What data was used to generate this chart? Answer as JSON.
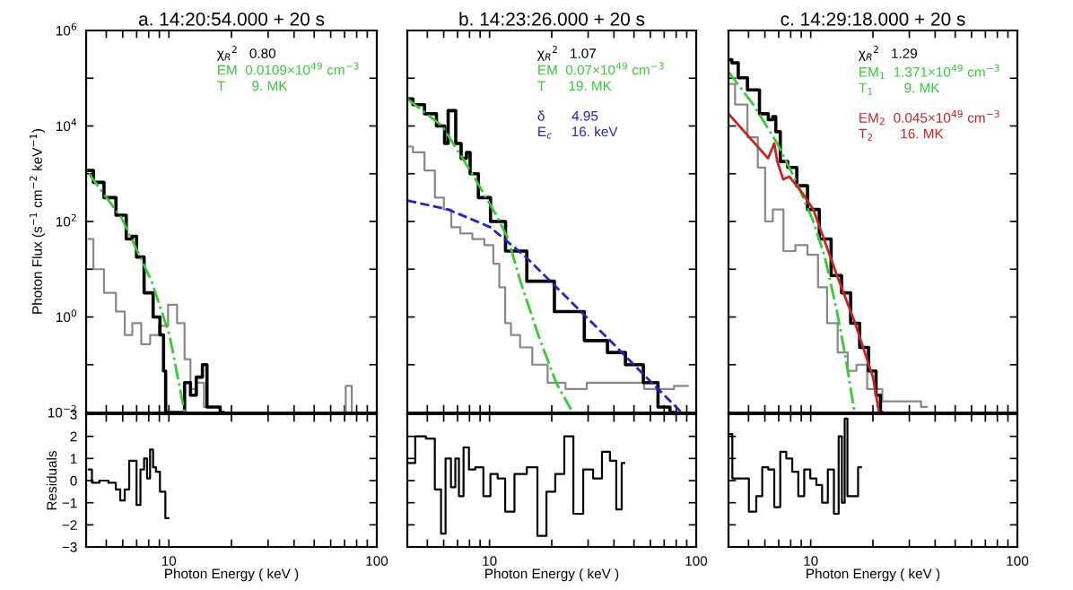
{
  "chart_data": [
    {
      "type": "line",
      "title": "a. 14:20:54.000 + 20 s",
      "ylabel": "Photon Flux (s$^{−1}$ cm$^{−2}$ keV$^{−1}$)",
      "log": "xy",
      "xlim": [
        4,
        100
      ],
      "ylim": [
        0.01,
        1000000
      ],
      "xticks": [
        {
          "value": 5,
          "label": null
        },
        {
          "value": 6,
          "label": null
        },
        {
          "value": 7,
          "label": null
        },
        {
          "value": 8,
          "label": null
        },
        {
          "value": 9,
          "label": null
        },
        {
          "value": 10,
          "label": null
        },
        {
          "value": 20,
          "label": null
        },
        {
          "value": 30,
          "label": null
        },
        {
          "value": 40,
          "label": null
        },
        {
          "value": 50,
          "label": null
        },
        {
          "value": 60,
          "label": null
        },
        {
          "value": 70,
          "label": null
        },
        {
          "value": 80,
          "label": null
        },
        {
          "value": 90,
          "label": null
        },
        {
          "value": 100,
          "label": null
        }
      ],
      "yticks": [
        {
          "value": 0.01,
          "label": "10$^{−2}$"
        },
        {
          "value": 0.1,
          "label": null
        },
        {
          "value": 1,
          "label": "10$^{0}$"
        },
        {
          "value": 10,
          "label": null
        },
        {
          "value": 100,
          "label": "10$^{2}$"
        },
        {
          "value": 1000,
          "label": null
        },
        {
          "value": 10000,
          "label": "10$^{4}$"
        },
        {
          "value": 100000,
          "label": null
        },
        {
          "value": 1000000,
          "label": "10$^{6}$"
        }
      ],
      "tick_labels": "y",
      "grid": false,
      "annotations": [
        "χ$_{R}$$^{2}$   0.80"
      ],
      "series": [
        {
          "type": "step",
          "color": "#888888",
          "line_style": "solid",
          "x": [
            4.12,
            4.55,
            5.2,
            5.93,
            6.34,
            7.0,
            7.73,
            8.53,
            9.42,
            10.4,
            11.5,
            12.3,
            13.1,
            14.0,
            15.5,
            20,
            68.5,
            73.3,
            78.3
          ],
          "values": [
            43,
            10,
            3.2,
            1.3,
            0.42,
            0.74,
            0.27,
            0.42,
            0.65,
            1.8,
            0.74,
            0.13,
            0.031,
            0.042,
            0.013,
            null,
            0.01,
            0.036,
            0.01
          ]
        },
        {
          "type": "step",
          "color": "#000000",
          "line_style": "solid",
          "x": [
            4.12,
            4.55,
            5.2,
            5.93,
            6.54,
            6.76,
            7.22,
            7.98,
            8.82,
            9.3,
            9.55,
            9.75,
            11.5,
            12.3,
            13.1,
            14.0,
            15.0,
            15.5,
            17.1,
            18.2
          ],
          "values": [
            1170,
            660,
            316,
            135,
            43,
            49,
            18,
            3.2,
            1.0,
            0.42,
            0.074,
            0.01,
            0.01,
            0.042,
            0.023,
            0.055,
            0.1,
            0.013,
            0.013,
            0.01
          ]
        },
        {
          "type": "line",
          "name": "EM  0.0109×10$^{49}$ cm$^{−3}$\nT       9. MK",
          "color": "#33cc33",
          "line_style": "dashdot",
          "x": [
            4.12,
            5.93,
            8.26,
            10.07,
            11.9
          ],
          "values": [
            1010,
            117,
            5.6,
            0.42,
            0.01
          ]
        }
      ]
    },
    {
      "type": "line",
      "title": "b. 14:23:26.000 + 20 s",
      "log": "xy",
      "xlim": [
        4,
        100
      ],
      "ylim": [
        0.01,
        1000000
      ],
      "xticks": [
        {
          "value": 5,
          "label": null
        },
        {
          "value": 6,
          "label": null
        },
        {
          "value": 7,
          "label": null
        },
        {
          "value": 8,
          "label": null
        },
        {
          "value": 9,
          "label": null
        },
        {
          "value": 10,
          "label": null
        },
        {
          "value": 20,
          "label": null
        },
        {
          "value": 30,
          "label": null
        },
        {
          "value": 40,
          "label": null
        },
        {
          "value": 50,
          "label": null
        },
        {
          "value": 60,
          "label": null
        },
        {
          "value": 70,
          "label": null
        },
        {
          "value": 80,
          "label": null
        },
        {
          "value": 90,
          "label": null
        },
        {
          "value": 100,
          "label": null
        }
      ],
      "yticks": [
        {
          "value": 0.01,
          "label": null
        },
        {
          "value": 0.1,
          "label": null
        },
        {
          "value": 1,
          "label": null
        },
        {
          "value": 10,
          "label": null
        },
        {
          "value": 100,
          "label": null
        },
        {
          "value": 1000,
          "label": null
        },
        {
          "value": 10000,
          "label": null
        },
        {
          "value": 100000,
          "label": null
        },
        {
          "value": 1000000,
          "label": null
        }
      ],
      "tick_labels": false,
      "grid": false,
      "annotations": [
        "χ$_{R}$$^{2}$   1.07"
      ],
      "series": [
        {
          "type": "step",
          "color": "#888888",
          "line_style": "solid",
          "x": [
            4.0,
            4.52,
            5.17,
            5.71,
            6.31,
            6.75,
            7.7,
            8.81,
            10.07,
            10.8,
            11.5,
            12.3,
            13.1,
            15.0,
            17.2,
            21,
            25.6,
            33.5,
            46.8,
            65.2,
            91
          ],
          "values": [
            3700,
            2800,
            1170,
            316,
            178,
            76,
            56,
            43,
            32,
            13,
            4.2,
            0.74,
            0.42,
            0.23,
            0.1,
            0.042,
            0.031,
            0.042,
            0.042,
            0.031,
            0.036
          ]
        },
        {
          "type": "step",
          "color": "#000000",
          "line_style": "solid",
          "x": [
            4.0,
            4.52,
            5.17,
            5.9,
            6.22,
            6.39,
            6.75,
            6.97,
            7.6,
            7.87,
            8.24,
            9.42,
            10.8,
            13.1,
            17.2,
            24,
            33.5,
            40.9,
            50,
            61,
            69.7,
            79.6
          ],
          "values": [
            37000,
            28000,
            18000,
            10000,
            4300,
            21000,
            21000,
            4300,
            2100,
            2800,
            1000,
            316,
            100,
            24,
            5.6,
            1.3,
            0.32,
            0.18,
            0.1,
            0.042,
            0.013,
            0.01
          ]
        },
        {
          "type": "line",
          "name": "EM  0.07×10$^{49}$ cm$^{−3}$\nT      19. MK",
          "color": "#33cc33",
          "line_style": "dashdot",
          "x": [
            4.0,
            5.9,
            8.24,
            10.8,
            12.3,
            14.1,
            17.2,
            21,
            24.8
          ],
          "values": [
            37000,
            10000,
            1000,
            134,
            43,
            5.6,
            0.42,
            0.042,
            0.0115
          ]
        },
        {
          "type": "line",
          "name": "δ       4.95\nE$_{c}$     16. keV",
          "color": "#2222cc",
          "line_style": "dashed",
          "x": [
            4.0,
            6.31,
            10.07,
            15.0,
            24,
            38.3,
            53.5,
            85
          ],
          "values": [
            275,
            178,
            76,
            18,
            2.4,
            0.32,
            0.074,
            0.01
          ]
        }
      ]
    },
    {
      "type": "line",
      "title": "c. 14:29:18.000 + 20 s",
      "log": "xy",
      "xlim": [
        4,
        100
      ],
      "ylim": [
        0.01,
        1000000
      ],
      "xticks": [
        {
          "value": 5,
          "label": null
        },
        {
          "value": 6,
          "label": null
        },
        {
          "value": 7,
          "label": null
        },
        {
          "value": 8,
          "label": null
        },
        {
          "value": 9,
          "label": null
        },
        {
          "value": 10,
          "label": null
        },
        {
          "value": 20,
          "label": null
        },
        {
          "value": 30,
          "label": null
        },
        {
          "value": 40,
          "label": null
        },
        {
          "value": 50,
          "label": null
        },
        {
          "value": 60,
          "label": null
        },
        {
          "value": 70,
          "label": null
        },
        {
          "value": 80,
          "label": null
        },
        {
          "value": 90,
          "label": null
        },
        {
          "value": 100,
          "label": null
        }
      ],
      "yticks": [
        {
          "value": 0.01,
          "label": null
        },
        {
          "value": 0.1,
          "label": null
        },
        {
          "value": 1,
          "label": null
        },
        {
          "value": 10,
          "label": null
        },
        {
          "value": 100,
          "label": null
        },
        {
          "value": 1000,
          "label": null
        },
        {
          "value": 10000,
          "label": null
        },
        {
          "value": 100000,
          "label": null
        },
        {
          "value": 1000000,
          "label": null
        }
      ],
      "tick_labels": false,
      "grid": false,
      "annotations": [
        "χ$_{R}$$^{2}$   1.29"
      ],
      "series": [
        {
          "type": "step",
          "color": "#888888",
          "line_style": "solid",
          "x": [
            4.0,
            4.61,
            5.27,
            5.82,
            6.22,
            6.89,
            7.87,
            8.99,
            10.3,
            11.4,
            12.6,
            14.4,
            15.8,
            17.5,
            20.0,
            24.4,
            31.9,
            36.5
          ],
          "values": [
            76000,
            28000,
            5800,
            1350,
            100,
            178,
            24,
            32,
            20,
            4.2,
            0.74,
            0.18,
            0.074,
            0.1,
            0.031,
            0.017,
            0.017,
            0.013
          ]
        },
        {
          "type": "step",
          "color": "#000000",
          "line_style": "solid",
          "x": [
            4.0,
            4.31,
            4.61,
            5.27,
            6.03,
            6.44,
            6.66,
            6.89,
            7.36,
            8.13,
            8.99,
            10.3,
            11.7,
            13.4,
            14.8,
            16.4,
            18.1,
            20.0,
            21.4,
            22.1
          ],
          "values": [
            245000,
            210000,
            102000,
            57000,
            18000,
            13500,
            15700,
            7600,
            1800,
            1350,
            560,
            178,
            43,
            7.4,
            3.2,
            0.74,
            0.23,
            0.074,
            0.023,
            0.01
          ]
        },
        {
          "type": "line",
          "name": "EM$_{1}$  1.371×10$^{49}$ cm$^{−3}$\nT$_{1}$        9. MK",
          "color": "#33cc33",
          "line_style": "dashdot",
          "x": [
            4.0,
            5.27,
            6.89,
            8.41,
            10.3,
            11.7,
            13.4,
            14.8,
            16.2
          ],
          "values": [
            137000,
            28000,
            4300,
            760,
            100,
            18,
            1.3,
            0.13,
            0.0115
          ]
        },
        {
          "type": "line",
          "name": "EM$_{2}$  0.045×10$^{49}$ cm$^{−3}$\nT$_{2}$       16. MK",
          "color": "#cc2222",
          "line_style": "solid",
          "x": [
            4.0,
            6.22,
            6.66,
            6.89,
            7.36,
            7.87,
            8.99,
            10.3,
            13.4,
            16.4,
            20.0,
            21.4
          ],
          "values": [
            18000,
            2100,
            4300,
            1800,
            760,
            870,
            430,
            178,
            7.4,
            0.74,
            0.055,
            0.01
          ]
        }
      ]
    },
    {
      "type": "step",
      "xlabel": "Photon Energy ( keV )",
      "ylabel": "Residuals",
      "log": "x",
      "xlim": [
        4,
        100
      ],
      "ylim": [
        -3,
        3
      ],
      "xticks": [
        {
          "value": 5,
          "label": null
        },
        {
          "value": 6,
          "label": null
        },
        {
          "value": 7,
          "label": null
        },
        {
          "value": 8,
          "label": null
        },
        {
          "value": 9,
          "label": null
        },
        10,
        {
          "value": 20,
          "label": null
        },
        {
          "value": 30,
          "label": null
        },
        {
          "value": 40,
          "label": null
        },
        {
          "value": 50,
          "label": null
        },
        {
          "value": 60,
          "label": null
        },
        {
          "value": 70,
          "label": null
        },
        {
          "value": 80,
          "label": null
        },
        {
          "value": 90,
          "label": null
        },
        100
      ],
      "yticks": [
        {
          "value": -3,
          "label": "−3"
        },
        {
          "value": -2,
          "label": "−2"
        },
        {
          "value": -1,
          "label": "−1"
        },
        0,
        1,
        2,
        3
      ],
      "grid": false,
      "series": [
        {
          "color": "#000000",
          "line_style": "solid",
          "x": [
            4.12,
            4.41,
            4.86,
            5.37,
            5.74,
            5.93,
            6.34,
            6.55,
            6.85,
            7.13,
            7.47,
            7.73,
            7.98,
            8.26,
            8.53,
            8.82,
            9.3,
            9.94
          ],
          "values": [
            0.5,
            -0.1,
            0,
            -0.1,
            -0.4,
            -0.9,
            -0.4,
            0.9,
            0.9,
            -1.1,
            0.5,
            1.0,
            0.1,
            1.4,
            0.6,
            0.4,
            -0.5,
            -1.7
          ]
        }
      ]
    },
    {
      "type": "step",
      "xlabel": "Photon Energy ( keV )",
      "log": "x",
      "xlim": [
        4,
        100
      ],
      "ylim": [
        -3,
        3
      ],
      "xticks": [
        {
          "value": 5,
          "label": null
        },
        {
          "value": 6,
          "label": null
        },
        {
          "value": 7,
          "label": null
        },
        {
          "value": 8,
          "label": null
        },
        {
          "value": 9,
          "label": null
        },
        10,
        {
          "value": 20,
          "label": null
        },
        {
          "value": 30,
          "label": null
        },
        {
          "value": 40,
          "label": null
        },
        {
          "value": 50,
          "label": null
        },
        {
          "value": 60,
          "label": null
        },
        {
          "value": 70,
          "label": null
        },
        {
          "value": 80,
          "label": null
        },
        {
          "value": 90,
          "label": null
        },
        100
      ],
      "yticks": [
        {
          "value": -3,
          "label": null
        },
        {
          "value": -2,
          "label": null
        },
        {
          "value": -1,
          "label": null
        },
        {
          "value": 0,
          "label": null
        },
        {
          "value": 1,
          "label": null
        },
        {
          "value": 2,
          "label": null
        },
        {
          "value": 3,
          "label": null
        }
      ],
      "tick_labels": "x",
      "grid": false,
      "series": [
        {
          "color": "#000000",
          "line_style": "solid",
          "x": [
            4.06,
            4.68,
            5.16,
            5.71,
            5.94,
            6.31,
            6.7,
            6.96,
            7.26,
            7.71,
            8.19,
            8.87,
            9.8,
            10.4,
            11.5,
            12.3,
            14.1,
            16.2,
            17.9,
            19.8,
            21.8,
            24.2,
            26.7,
            30.1,
            33.3,
            36.7,
            39.8,
            42.3,
            44.9
          ],
          "values": [
            0.8,
            2.0,
            1.9,
            -0.4,
            -2.4,
            1.0,
            -0.3,
            1.0,
            -0.7,
            1.5,
            0.5,
            0.6,
            -0.7,
            0.3,
            0.1,
            -1.4,
            0.3,
            0.6,
            -2.5,
            -0.5,
            0.3,
            2.0,
            -1.5,
            0.5,
            0.1,
            1.3,
            0.9,
            -1.3,
            0.8
          ]
        }
      ]
    },
    {
      "type": "step",
      "xlabel": "Photon Energy ( keV )",
      "log": "x",
      "xlim": [
        4,
        100
      ],
      "ylim": [
        -3,
        3
      ],
      "xticks": [
        {
          "value": 5,
          "label": null
        },
        {
          "value": 6,
          "label": null
        },
        {
          "value": 7,
          "label": null
        },
        {
          "value": 8,
          "label": null
        },
        {
          "value": 9,
          "label": null
        },
        10,
        {
          "value": 20,
          "label": null
        },
        {
          "value": 30,
          "label": null
        },
        {
          "value": 40,
          "label": null
        },
        {
          "value": 50,
          "label": null
        },
        {
          "value": 60,
          "label": null
        },
        {
          "value": 70,
          "label": null
        },
        {
          "value": 80,
          "label": null
        },
        {
          "value": 90,
          "label": null
        },
        100
      ],
      "yticks": [
        {
          "value": -3,
          "label": null
        },
        {
          "value": -2,
          "label": null
        },
        {
          "value": -1,
          "label": null
        },
        {
          "value": 0,
          "label": null
        },
        {
          "value": 1,
          "label": null
        },
        {
          "value": 2,
          "label": null
        },
        {
          "value": 3,
          "label": null
        }
      ],
      "tick_labels": "x",
      "grid": false,
      "series": [
        {
          "color": "#000000",
          "line_style": "solid",
          "x": [
            4.04,
            4.31,
            4.77,
            5.27,
            5.63,
            6.02,
            6.44,
            6.88,
            7.36,
            7.87,
            8.41,
            9.0,
            9.6,
            10.3,
            11.0,
            11.7,
            12.5,
            13.4,
            13.9,
            14.4,
            14.8,
            15.3,
            16.4,
            17.5
          ],
          "values": [
            2.1,
            0.1,
            0.1,
            -1.4,
            -0.7,
            0.6,
            0.5,
            -1.2,
            1.3,
            1.0,
            0.4,
            -0.7,
            0.5,
            0.1,
            -0.2,
            -1.0,
            0.5,
            -1.5,
            2.0,
            -1.0,
            2.8,
            -0.7,
            -0.7,
            0.6
          ]
        }
      ]
    }
  ]
}
